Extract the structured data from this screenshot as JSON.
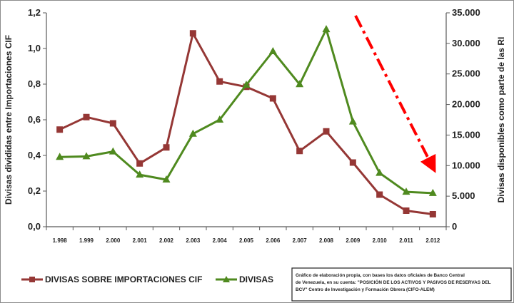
{
  "chart_data": {
    "type": "line",
    "categories": [
      "1.998",
      "1.999",
      "2.000",
      "2.001",
      "2.002",
      "2.003",
      "2.004",
      "2.005",
      "2.006",
      "2.007",
      "2.008",
      "2.009",
      "2.010",
      "2.011",
      "2.012"
    ],
    "ylabel_left": "Divisas divididas entre Importaciones CIF",
    "ylabel_right": "Divisas disponibles como parte de las RI",
    "ylim_left": [
      0,
      1.2
    ],
    "ylim_right": [
      0,
      35000
    ],
    "yticks_left": [
      "0,0",
      "0,2",
      "0,4",
      "0,6",
      "0,8",
      "1,0",
      "1,2"
    ],
    "yticks_right": [
      "0",
      "5.000",
      "10.000",
      "15.000",
      "20.000",
      "25.000",
      "30.000",
      "35.000"
    ],
    "grid": false,
    "series": [
      {
        "name": "DIVISAS SOBRE IMPORTACIONES CIF",
        "axis": "left",
        "color": "#953735",
        "marker": "square",
        "values": [
          0.545,
          0.615,
          0.58,
          0.355,
          0.445,
          1.085,
          0.815,
          0.785,
          0.72,
          0.425,
          0.535,
          0.36,
          0.18,
          0.09,
          0.07
        ]
      },
      {
        "name": "DIVISAS",
        "axis": "right",
        "color": "#4f8a1f",
        "marker": "triangle",
        "values": [
          11400,
          11500,
          12300,
          8500,
          7700,
          15200,
          17500,
          23200,
          28700,
          23300,
          32300,
          17200,
          8800,
          5700,
          5500
        ]
      }
    ],
    "annotation_arrow": {
      "color": "#ff0000",
      "style": "dash-dot",
      "direction": "down-right"
    },
    "legend_position": "bottom-left",
    "source_note": "Gráfico de elaboración propia, con bases los datos oficiales de Banco Central de Venezuela, en su cuenta: \"POSICIÓN DE LOS ACTIVOS Y PASIVOS DE RESERVAS DEL BCV\" Centro de Investigación y Formación Obrera (CIFO-ALEM)"
  }
}
